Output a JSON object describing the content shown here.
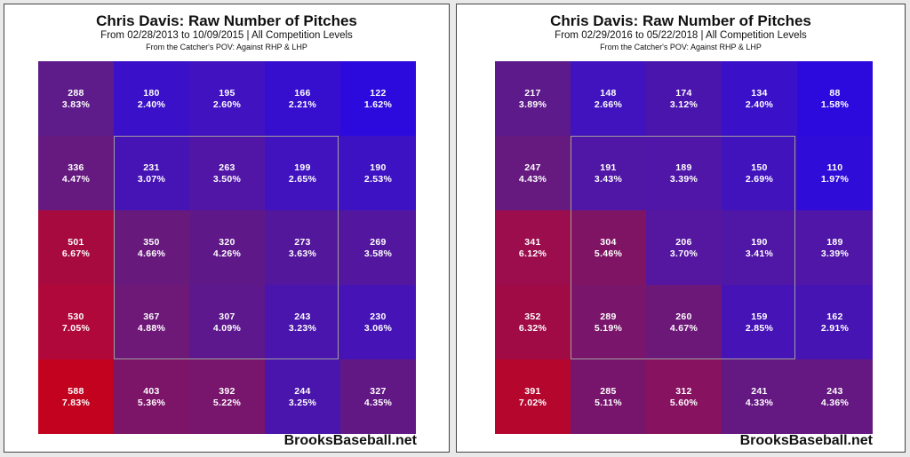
{
  "chart_data": [
    {
      "type": "heatmap",
      "title": "Chris Davis: Raw Number of Pitches",
      "subtitle": "From 02/28/2013 to 10/09/2015 | All Competition Levels",
      "note": "From the Catcher's POV:  Against RHP & LHP",
      "watermark": "BrooksBaseball.net",
      "rows": 5,
      "cols": 5,
      "cells": [
        [
          {
            "count": "288",
            "pct": "3.83%",
            "color": "#5d1c8a"
          },
          {
            "count": "180",
            "pct": "2.40%",
            "color": "#3a10c8"
          },
          {
            "count": "195",
            "pct": "2.60%",
            "color": "#4012c0"
          },
          {
            "count": "166",
            "pct": "2.21%",
            "color": "#360fce"
          },
          {
            "count": "122",
            "pct": "1.62%",
            "color": "#2c0ade"
          }
        ],
        [
          {
            "count": "336",
            "pct": "4.47%",
            "color": "#661a80"
          },
          {
            "count": "231",
            "pct": "3.07%",
            "color": "#4614b4"
          },
          {
            "count": "263",
            "pct": "3.50%",
            "color": "#5116a6"
          },
          {
            "count": "199",
            "pct": "2.65%",
            "color": "#4013bf"
          },
          {
            "count": "190",
            "pct": "2.53%",
            "color": "#3d12c3"
          }
        ],
        [
          {
            "count": "501",
            "pct": "6.67%",
            "color": "#a70a3e"
          },
          {
            "count": "350",
            "pct": "4.66%",
            "color": "#681a7c"
          },
          {
            "count": "320",
            "pct": "4.26%",
            "color": "#5e1887"
          },
          {
            "count": "273",
            "pct": "3.63%",
            "color": "#53179c"
          },
          {
            "count": "269",
            "pct": "3.58%",
            "color": "#52179e"
          }
        ],
        [
          {
            "count": "530",
            "pct": "7.05%",
            "color": "#b0083a"
          },
          {
            "count": "367",
            "pct": "4.88%",
            "color": "#6e1878"
          },
          {
            "count": "307",
            "pct": "4.09%",
            "color": "#5c188c"
          },
          {
            "count": "243",
            "pct": "3.23%",
            "color": "#4a15ac"
          },
          {
            "count": "230",
            "pct": "3.06%",
            "color": "#4614b6"
          }
        ],
        [
          {
            "count": "588",
            "pct": "7.83%",
            "color": "#c2021f"
          },
          {
            "count": "403",
            "pct": "5.36%",
            "color": "#7c1468"
          },
          {
            "count": "392",
            "pct": "5.22%",
            "color": "#78156c"
          },
          {
            "count": "244",
            "pct": "3.25%",
            "color": "#4a15ac"
          },
          {
            "count": "327",
            "pct": "4.35%",
            "color": "#621884"
          }
        ]
      ]
    },
    {
      "type": "heatmap",
      "title": "Chris Davis: Raw Number of Pitches",
      "subtitle": "From 02/29/2016 to 05/22/2018 | All Competition Levels",
      "note": "From the Catcher's POV:  Against RHP & LHP",
      "watermark": "BrooksBaseball.net",
      "rows": 5,
      "cols": 5,
      "cells": [
        [
          {
            "count": "217",
            "pct": "3.89%",
            "color": "#5d1a8a"
          },
          {
            "count": "148",
            "pct": "2.66%",
            "color": "#4013be"
          },
          {
            "count": "174",
            "pct": "3.12%",
            "color": "#4a15ac"
          },
          {
            "count": "134",
            "pct": "2.40%",
            "color": "#3a10c8"
          },
          {
            "count": "88",
            "pct": "1.58%",
            "color": "#2c0ade"
          }
        ],
        [
          {
            "count": "247",
            "pct": "4.43%",
            "color": "#661a80"
          },
          {
            "count": "191",
            "pct": "3.43%",
            "color": "#5016a6"
          },
          {
            "count": "189",
            "pct": "3.39%",
            "color": "#4f16a8"
          },
          {
            "count": "150",
            "pct": "2.69%",
            "color": "#4113bd"
          },
          {
            "count": "110",
            "pct": "1.97%",
            "color": "#300cd8"
          }
        ],
        [
          {
            "count": "341",
            "pct": "6.12%",
            "color": "#9b0d4c"
          },
          {
            "count": "304",
            "pct": "5.46%",
            "color": "#801464"
          },
          {
            "count": "206",
            "pct": "3.70%",
            "color": "#5517a0"
          },
          {
            "count": "190",
            "pct": "3.41%",
            "color": "#5016a6"
          },
          {
            "count": "189",
            "pct": "3.39%",
            "color": "#4f16a8"
          }
        ],
        [
          {
            "count": "352",
            "pct": "6.32%",
            "color": "#a00b46"
          },
          {
            "count": "289",
            "pct": "5.19%",
            "color": "#79156a"
          },
          {
            "count": "260",
            "pct": "4.67%",
            "color": "#6c1878"
          },
          {
            "count": "159",
            "pct": "2.85%",
            "color": "#4614b6"
          },
          {
            "count": "162",
            "pct": "2.91%",
            "color": "#4714b4"
          }
        ],
        [
          {
            "count": "391",
            "pct": "7.02%",
            "color": "#b5062e"
          },
          {
            "count": "285",
            "pct": "5.11%",
            "color": "#77156c"
          },
          {
            "count": "312",
            "pct": "5.60%",
            "color": "#861260"
          },
          {
            "count": "241",
            "pct": "4.33%",
            "color": "#641882"
          },
          {
            "count": "243",
            "pct": "4.36%",
            "color": "#651881"
          }
        ]
      ]
    }
  ]
}
